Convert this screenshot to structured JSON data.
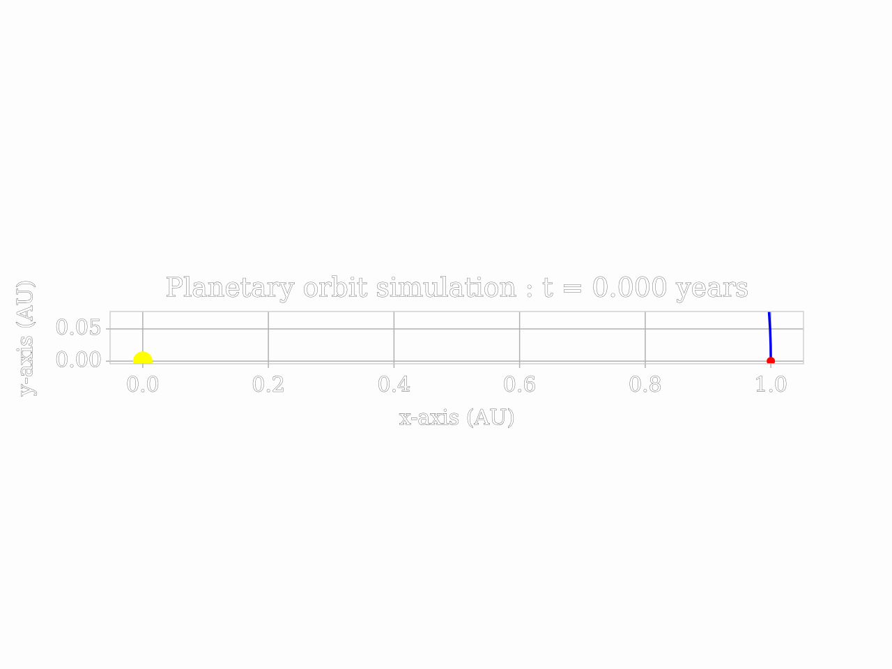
{
  "chart_data": {
    "type": "line",
    "title": "Planetary orbit simulation : t = 0.000 years",
    "xlabel": "x-axis (AU)",
    "ylabel": "y-axis (AU)",
    "xlim": [
      -0.052,
      1.052
    ],
    "ylim": [
      -0.004,
      0.077
    ],
    "xticks": [
      {
        "value": 0,
        "label": "0.0"
      },
      {
        "value": 0.2,
        "label": "0.2"
      },
      {
        "value": 0.4,
        "label": "0.4"
      },
      {
        "value": 0.6,
        "label": "0.6"
      },
      {
        "value": 0.8,
        "label": "0.8"
      },
      {
        "value": 1,
        "label": "1.0"
      }
    ],
    "yticks": [
      {
        "value": 0,
        "label": "0.00"
      },
      {
        "value": 0.05,
        "label": "0.05"
      }
    ],
    "grid": true,
    "series": [
      {
        "color": "#0000ee",
        "x": [
          1.0,
          0.9997,
          0.9988,
          0.9972,
          0.995
        ],
        "y": [
          0,
          0.025,
          0.05,
          0.075,
          0.1
        ]
      }
    ],
    "points": [
      {
        "color": "#ffff00",
        "x": [
          0
        ],
        "y": [
          0
        ],
        "marker_size": 14
      },
      {
        "color": "#ff0000",
        "x": [
          1
        ],
        "y": [
          0
        ],
        "marker_size": 6
      }
    ]
  }
}
